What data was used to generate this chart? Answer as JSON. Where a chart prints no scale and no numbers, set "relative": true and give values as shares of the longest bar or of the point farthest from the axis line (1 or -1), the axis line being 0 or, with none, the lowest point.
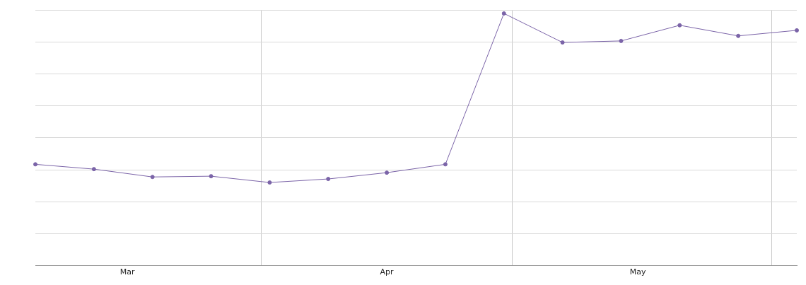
{
  "chart_data": {
    "type": "line",
    "relative": true,
    "x": [
      "--03-05",
      "--03-12",
      "--03-19",
      "--03-26",
      "--04-02",
      "--04-09",
      "--04-16",
      "--04-23",
      "--04-30",
      "--05-07",
      "--05-14",
      "--05-21",
      "--05-28",
      "--06-04"
    ],
    "series": [
      {
        "color": "#7b64a8",
        "values": [
          0.402,
          0.383,
          0.352,
          0.355,
          0.33,
          0.344,
          0.369,
          0.402,
          1,
          0.885,
          0.891,
          0.953,
          0.911,
          0.933
        ]
      }
    ],
    "xlim": [
      "--03-05",
      "--06-04"
    ],
    "xticks": [
      {
        "value": "--03-16",
        "label": "Mar"
      },
      {
        "value": "--04-01",
        "label": null
      },
      {
        "value": "--04-16",
        "label": "Apr"
      },
      {
        "value": "--05-01",
        "label": null
      },
      {
        "value": "--05-16",
        "label": "May"
      },
      {
        "value": "--06-01",
        "label": null
      }
    ],
    "grid": true,
    "legend": false,
    "marker": "circle",
    "line_style": "solid"
  }
}
